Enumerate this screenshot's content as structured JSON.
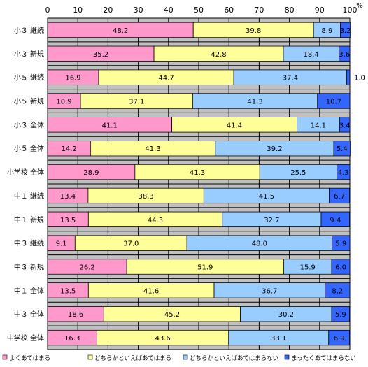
{
  "chart_data": {
    "type": "bar",
    "orientation": "horizontal",
    "stacked": true,
    "percent_label": "%",
    "xlim": [
      0,
      100
    ],
    "x_ticks": [
      "0",
      "10",
      "20",
      "30",
      "40",
      "50",
      "60",
      "70",
      "80",
      "90",
      "100"
    ],
    "grid": true,
    "legend_position": "bottom",
    "categories": [
      "小３ 継続",
      "小３ 新規",
      "小５ 継続",
      "小５ 新規",
      "小３ 全体",
      "小５ 全体",
      "小学校 全体",
      "中１ 継続",
      "中１ 新規",
      "中３ 継続",
      "中３ 新規",
      "中１ 全体",
      "中３ 全体",
      "中学校 全体"
    ],
    "series": [
      {
        "name": "よくあてはまる",
        "color": "#ff99cc",
        "values": [
          48.2,
          35.2,
          16.9,
          10.9,
          41.1,
          14.2,
          28.9,
          13.4,
          13.5,
          9.1,
          26.2,
          13.5,
          18.6,
          16.3
        ]
      },
      {
        "name": "どちらかといえばあてはまる",
        "color": "#ffff99",
        "values": [
          39.8,
          42.8,
          44.7,
          37.1,
          41.4,
          41.3,
          41.3,
          38.3,
          44.3,
          37.0,
          51.9,
          41.6,
          45.2,
          43.6
        ]
      },
      {
        "name": "どちらかといえばあてはまらない",
        "color": "#99ccff",
        "values": [
          8.9,
          18.4,
          37.4,
          41.3,
          14.1,
          39.2,
          25.5,
          41.5,
          32.7,
          48.0,
          15.9,
          36.7,
          30.2,
          33.1
        ]
      },
      {
        "name": "まったくあてはまらない",
        "color": "#3366ff",
        "values": [
          3.2,
          3.6,
          1.0,
          10.7,
          3.4,
          5.4,
          4.3,
          6.7,
          9.4,
          5.9,
          6.0,
          8.2,
          5.9,
          6.9
        ]
      }
    ],
    "value_labels": [
      [
        "48.2",
        "39.8",
        "8.9",
        "3.2"
      ],
      [
        "35.2",
        "42.8",
        "18.4",
        "3.6"
      ],
      [
        "16.9",
        "44.7",
        "37.4",
        "1.0"
      ],
      [
        "10.9",
        "37.1",
        "41.3",
        "10.7"
      ],
      [
        "41.1",
        "41.4",
        "14.1",
        "3.4"
      ],
      [
        "14.2",
        "41.3",
        "39.2",
        "5.4"
      ],
      [
        "28.9",
        "41.3",
        "25.5",
        "4.3"
      ],
      [
        "13.4",
        "38.3",
        "41.5",
        "6.7"
      ],
      [
        "13.5",
        "44.3",
        "32.7",
        "9.4"
      ],
      [
        "9.1",
        "37.0",
        "48.0",
        "5.9"
      ],
      [
        "26.2",
        "51.9",
        "15.9",
        "6.0"
      ],
      [
        "13.5",
        "41.6",
        "36.7",
        "8.2"
      ],
      [
        "18.6",
        "45.2",
        "30.2",
        "5.9"
      ],
      [
        "16.3",
        "43.6",
        "33.1",
        "6.9"
      ]
    ],
    "plot_background": "#c0c0c0",
    "grid_color": "#000000"
  }
}
